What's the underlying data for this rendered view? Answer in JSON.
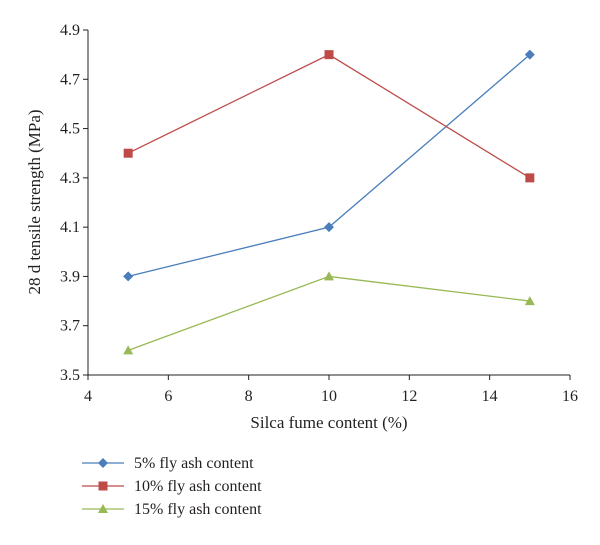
{
  "chart_data": {
    "type": "line",
    "xlabel": "Silca fume content (%)",
    "ylabel": "28 d tensile strength (MPa)",
    "xlim": [
      4,
      16
    ],
    "ylim": [
      3.5,
      4.9
    ],
    "x_ticks": [
      "4",
      "6",
      "8",
      "10",
      "12",
      "14",
      "16"
    ],
    "y_ticks": [
      "3.5",
      "3.7",
      "3.9",
      "4.1",
      "4.3",
      "4.5",
      "4.7",
      "4.9"
    ],
    "grid": false,
    "legend_position": "bottom-left",
    "x": [
      5,
      10,
      15
    ],
    "series": [
      {
        "name": "5% fly ash content",
        "values": [
          3.9,
          4.1,
          4.8
        ],
        "color": "#4a7ebb",
        "marker": "diamond"
      },
      {
        "name": "10% fly ash content",
        "values": [
          4.4,
          4.8,
          4.3
        ],
        "color": "#be4b48",
        "marker": "square"
      },
      {
        "name": "15% fly ash content",
        "values": [
          3.6,
          3.9,
          3.8
        ],
        "color": "#98b954",
        "marker": "triangle"
      }
    ]
  }
}
